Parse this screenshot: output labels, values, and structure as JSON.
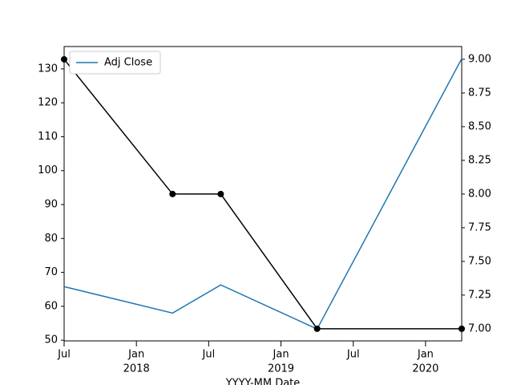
{
  "chart_data": {
    "type": "line",
    "x_label": "YYYY-MM Date",
    "x": [
      "2017-07",
      "2018-04",
      "2018-08",
      "2019-04",
      "2020-04"
    ],
    "series": [
      {
        "name": "Adj Close",
        "color": "#1f77b4",
        "values": [
          65.8,
          58,
          66.3,
          53.3,
          133
        ]
      },
      {
        "color": "#000000",
        "axis": "y2",
        "marker": "circle",
        "values": [
          9,
          8,
          8,
          7,
          7
        ]
      }
    ],
    "xlim": [
      "2017-07",
      "2020-04"
    ],
    "xticks": [
      {
        "value": "2017-07",
        "label": "Jul"
      },
      {
        "value": "2018-01",
        "label": "Jan",
        "year": "2018"
      },
      {
        "value": "2018-07",
        "label": "Jul"
      },
      {
        "value": "2019-01",
        "label": "Jan",
        "year": "2019"
      },
      {
        "value": "2019-07",
        "label": "Jul"
      },
      {
        "value": "2020-01",
        "label": "Jan",
        "year": "2020"
      }
    ],
    "ylim": [
      49.8,
      136.6
    ],
    "yticks": [
      50,
      60,
      70,
      80,
      90,
      100,
      110,
      120,
      130
    ],
    "y2lim": [
      6.91,
      9.095
    ],
    "y2ticks": [
      {
        "value": 7,
        "label": "7.00"
      },
      {
        "value": 7.25,
        "label": "7.25"
      },
      {
        "value": 7.5,
        "label": "7.50"
      },
      {
        "value": 7.75,
        "label": "7.75"
      },
      {
        "value": 8,
        "label": "8.00"
      },
      {
        "value": 8.25,
        "label": "8.25"
      },
      {
        "value": 8.5,
        "label": "8.50"
      },
      {
        "value": 8.75,
        "label": "8.75"
      },
      {
        "value": 9,
        "label": "9.00"
      }
    ],
    "legend": "upper left"
  }
}
